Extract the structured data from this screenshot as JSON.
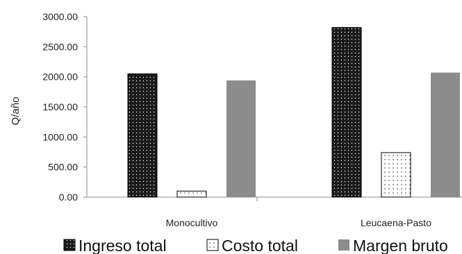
{
  "chart_data": {
    "type": "bar",
    "categories": [
      "Monocultivo",
      "Leucaena-Pasto"
    ],
    "series": [
      {
        "name": "Ingreso total",
        "values": [
          2050,
          2820
        ],
        "pattern": "dense-dots"
      },
      {
        "name": "Costo total",
        "values": [
          100,
          740
        ],
        "pattern": "sparse-dots"
      },
      {
        "name": "Margen bruto",
        "values": [
          1940,
          2070
        ],
        "pattern": "solid-gray"
      }
    ],
    "ylabel": "Q/año",
    "xlabel": "",
    "ylim": [
      0,
      3000
    ],
    "yticks": [
      "0.00",
      "500.00",
      "1000.00",
      "1500.00",
      "2000.00",
      "2500.00",
      "3000.00"
    ],
    "grid": false,
    "legend_position": "bottom",
    "colors": {
      "solid": "#8c8c8c",
      "dense": "#1a1a1a",
      "axis": "#8a8a8a"
    }
  }
}
